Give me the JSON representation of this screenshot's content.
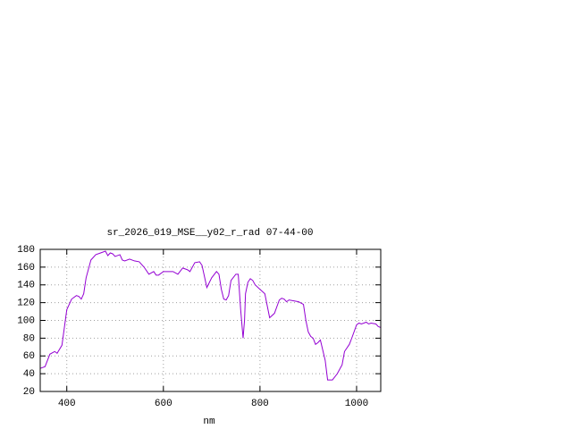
{
  "chart_data": {
    "type": "line",
    "title": "sr_2026_019_MSE__y02_r_rad 07-44-00",
    "x_label": "nm",
    "x": [
      345,
      355,
      365,
      375,
      380,
      390,
      400,
      410,
      420,
      425,
      430,
      435,
      440,
      450,
      460,
      470,
      480,
      485,
      490,
      495,
      500,
      510,
      515,
      520,
      530,
      540,
      550,
      560,
      570,
      580,
      585,
      590,
      600,
      610,
      620,
      630,
      640,
      650,
      655,
      665,
      675,
      680,
      690,
      700,
      710,
      715,
      720,
      725,
      730,
      735,
      740,
      750,
      755,
      760,
      765,
      768,
      770,
      775,
      780,
      785,
      790,
      800,
      810,
      820,
      830,
      840,
      845,
      850,
      855,
      860,
      870,
      880,
      890,
      895,
      900,
      905,
      910,
      915,
      920,
      925,
      935,
      940,
      950,
      960,
      970,
      975,
      985,
      990,
      1000,
      1005,
      1010,
      1020,
      1025,
      1030,
      1040,
      1045,
      1050
    ],
    "values": [
      46,
      48,
      62,
      65,
      63,
      72,
      112,
      124,
      128,
      127,
      124,
      130,
      148,
      168,
      174,
      176,
      178,
      173,
      176,
      175,
      172,
      174,
      168,
      167,
      169,
      167,
      166,
      160,
      152,
      155,
      151,
      151,
      155,
      155,
      155,
      152,
      159,
      157,
      155,
      165,
      166,
      162,
      137,
      148,
      155,
      152,
      135,
      124,
      123,
      128,
      145,
      152,
      152,
      112,
      80,
      100,
      130,
      143,
      147,
      145,
      140,
      135,
      130,
      103,
      108,
      123,
      125,
      124,
      121,
      123,
      122,
      121,
      118,
      100,
      87,
      82,
      80,
      73,
      75,
      78,
      55,
      33,
      33,
      40,
      50,
      65,
      73,
      80,
      95,
      97,
      96,
      98,
      96,
      97,
      96,
      93,
      92
    ],
    "color": "#9400d3",
    "xlim": [
      345,
      1050
    ],
    "xticks": [
      400,
      600,
      800,
      1000
    ],
    "ylim": [
      20,
      180
    ],
    "yticks": [
      20,
      40,
      60,
      80,
      100,
      120,
      140,
      160,
      180
    ],
    "grid": true
  }
}
